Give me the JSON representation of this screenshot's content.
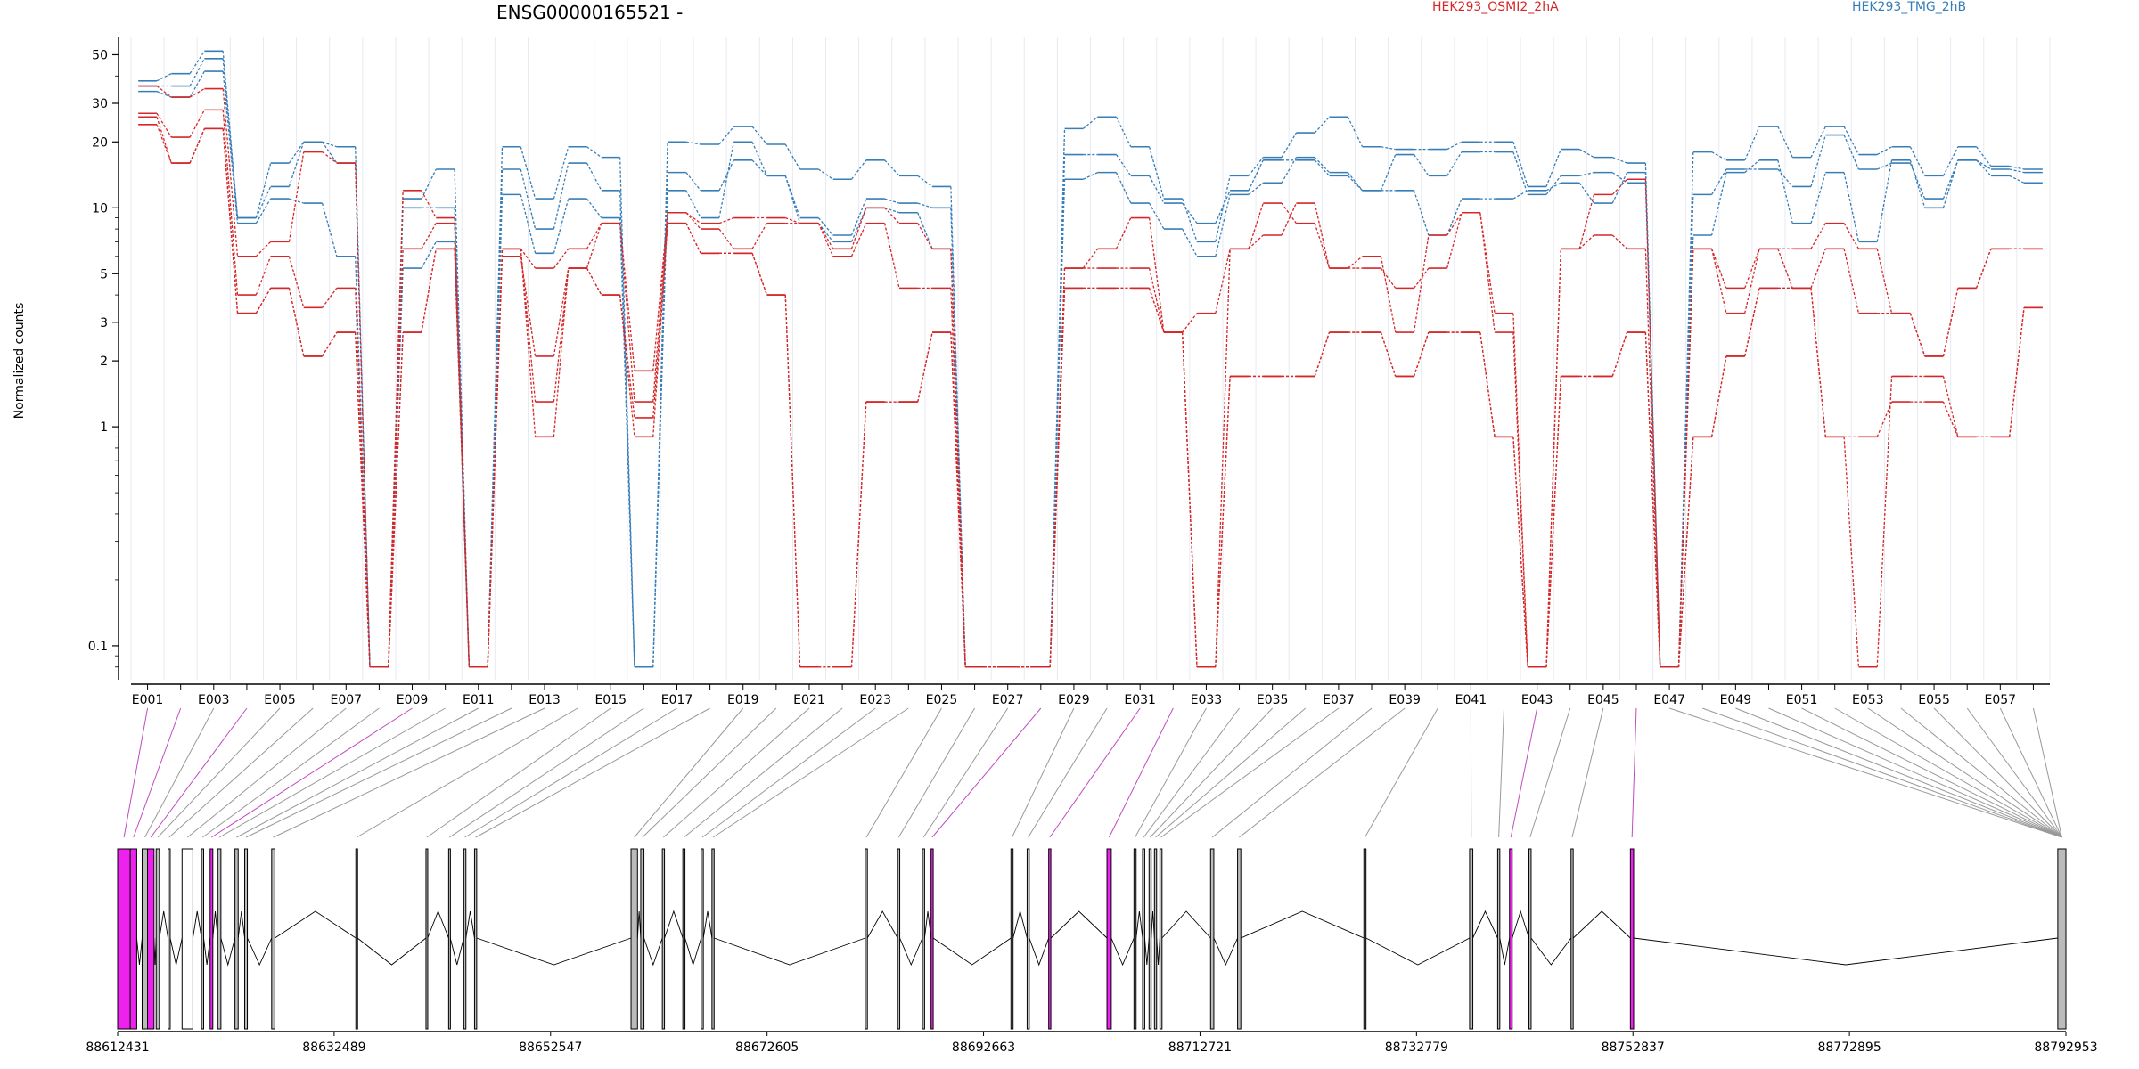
{
  "title": "ENSG00000165521 -",
  "legend": {
    "a": {
      "name": "HEK293_OSMI2_2hA",
      "color": "#d62728"
    },
    "b": {
      "name": "HEK293_TMG_2hB",
      "color": "#377eb8"
    }
  },
  "chart_data": {
    "type": "line",
    "title": "ENSG00000165521 -",
    "ylabel": "Normalized counts",
    "yscale": "log",
    "ylim": [
      0.07,
      60
    ],
    "yticks": [
      0.1,
      1,
      2,
      3,
      5,
      10,
      20,
      30,
      50
    ],
    "xtick_labels": [
      "E001",
      "E003",
      "E005",
      "E007",
      "E009",
      "E011",
      "E013",
      "E015",
      "E017",
      "E019",
      "E021",
      "E023",
      "E025",
      "E027",
      "E029",
      "E031",
      "E033",
      "E035",
      "E037",
      "E039",
      "E041",
      "E043",
      "E045",
      "E047",
      "E049",
      "E051",
      "E053",
      "E055",
      "E057"
    ],
    "categories": [
      "E001",
      "E002",
      "E003",
      "E004",
      "E005",
      "E006",
      "E007",
      "E008",
      "E009",
      "E010",
      "E011",
      "E012",
      "E013",
      "E014",
      "E015",
      "E016",
      "E017",
      "E018",
      "E019",
      "E020",
      "E021",
      "E022",
      "E023",
      "E024",
      "E025",
      "E026",
      "E027",
      "E028",
      "E029",
      "E030",
      "E031",
      "E032",
      "E033",
      "E034",
      "E035",
      "E036",
      "E037",
      "E038",
      "E039",
      "E040",
      "E041",
      "E042",
      "E043",
      "E044",
      "E045",
      "E046",
      "E047",
      "E048",
      "E049",
      "E050",
      "E051",
      "E052",
      "E053",
      "E054",
      "E055",
      "E056",
      "E057",
      "E058"
    ],
    "series": [
      {
        "group": "HEK293_TMG_2hB",
        "color": "#377eb8",
        "values": [
          38,
          41,
          52,
          9,
          16,
          20,
          19,
          0.08,
          11,
          15,
          0.08,
          19,
          11,
          19,
          17,
          0.08,
          20,
          19.5,
          23.5,
          19.5,
          15,
          13.5,
          16.5,
          14,
          12.5,
          0.08,
          0.08,
          0.08,
          23,
          26,
          19,
          11,
          7,
          14,
          17,
          22,
          26,
          19,
          18.5,
          18.5,
          20,
          20,
          12.5,
          18.5,
          17,
          16,
          0.08,
          18,
          16.5,
          23.5,
          17,
          23.5,
          17.5,
          19,
          14,
          19,
          15.5,
          15
        ]
      },
      {
        "group": "HEK293_TMG_2hB",
        "color": "#377eb8",
        "values": [
          36,
          36,
          48,
          9,
          12.5,
          20,
          16,
          0.08,
          10,
          10,
          0.08,
          15,
          8,
          16,
          12,
          0.08,
          14.5,
          12,
          16.5,
          14,
          9,
          7.5,
          11,
          10.5,
          10,
          0.08,
          0.08,
          0.08,
          17.5,
          17.5,
          14,
          10.5,
          8.5,
          12,
          16.5,
          16.5,
          14,
          12,
          17.5,
          14,
          18,
          18,
          11.5,
          14,
          14.5,
          13,
          0.08,
          11.5,
          15,
          15,
          12.5,
          21.5,
          15,
          16,
          11,
          16.5,
          15,
          14.5
        ]
      },
      {
        "group": "HEK293_TMG_2hB",
        "color": "#377eb8",
        "values": [
          34,
          32,
          42,
          8.5,
          11,
          10.5,
          6,
          0.08,
          5.3,
          7,
          0.08,
          11.5,
          6.2,
          11,
          9,
          0.08,
          12,
          9,
          20,
          14,
          8.5,
          7,
          10,
          9.5,
          6.5,
          0.08,
          0.08,
          0.08,
          13.5,
          14.5,
          10.5,
          8,
          6,
          11.5,
          13,
          17,
          14.5,
          12,
          12,
          7.5,
          11,
          11,
          12,
          13,
          10.5,
          14.5,
          0.08,
          7.5,
          14.5,
          16.5,
          8.5,
          14.5,
          7,
          16.5,
          10,
          16.5,
          14,
          13
        ]
      },
      {
        "group": "HEK293_OSMI2_2hA",
        "color": "#d62728",
        "values": [
          36,
          32,
          35,
          6,
          7,
          18,
          16,
          0.08,
          12,
          9,
          0.08,
          6.5,
          5.3,
          6.5,
          8.5,
          1.8,
          9.5,
          8.5,
          9,
          9,
          8.5,
          6.5,
          10,
          8.5,
          6.5,
          0.08,
          0.08,
          0.08,
          5.3,
          6.5,
          9,
          2.7,
          0.08,
          6.5,
          10.5,
          8.5,
          5.3,
          5.3,
          4.3,
          5.3,
          9.5,
          2.7,
          0.08,
          6.5,
          11.5,
          13.5,
          0.08,
          6.5,
          4.3,
          6.5,
          6.5,
          8.5,
          6.5,
          3.3,
          2.1,
          4.3,
          6.5,
          6.5
        ]
      },
      {
        "group": "HEK293_OSMI2_2hA",
        "color": "#d62728",
        "values": [
          27,
          21,
          28,
          4,
          6,
          3.5,
          4.3,
          0.08,
          6.5,
          8.5,
          0.08,
          6,
          2.1,
          5.3,
          8.5,
          1.3,
          9.5,
          8,
          6.5,
          8.5,
          8.5,
          6,
          8.5,
          4.3,
          4.3,
          0.08,
          0.08,
          0.08,
          5.3,
          5.3,
          5.3,
          2.7,
          3.3,
          6.5,
          7.5,
          10.5,
          5.3,
          6,
          2.7,
          7.5,
          9.5,
          3.3,
          0.08,
          6.5,
          7.5,
          6.5,
          0.08,
          6.5,
          3.3,
          6.5,
          4.3,
          6.5,
          3.3,
          3.3,
          2.1,
          4.3,
          6.5,
          6.5
        ]
      },
      {
        "group": "HEK293_OSMI2_2hA",
        "color": "#d62728",
        "values": [
          24,
          16,
          23,
          3.3,
          4.3,
          2.1,
          2.7,
          0.08,
          2.7,
          6.5,
          0.08,
          6.5,
          1.3,
          5.3,
          4,
          1.1,
          8.5,
          6.2,
          6.2,
          4,
          0.08,
          0.08,
          1.3,
          1.3,
          2.7,
          0.08,
          0.08,
          0.08,
          4.3,
          4.3,
          4.3,
          2.7,
          0.08,
          1.7,
          1.7,
          1.7,
          2.7,
          2.7,
          1.7,
          2.7,
          2.7,
          0.9,
          0.08,
          1.7,
          1.7,
          2.7,
          0.08,
          0.9,
          2.1,
          4.3,
          4.3,
          0.9,
          0.08,
          1.7,
          1.7,
          0.9,
          0.9,
          3.5
        ]
      },
      {
        "group": "HEK293_OSMI2_2hA",
        "color": "#d62728",
        "values": [
          26,
          16,
          23,
          3.3,
          4.3,
          2.1,
          2.7,
          0.08,
          2.7,
          6.5,
          0.08,
          6.5,
          0.9,
          5.3,
          4,
          0.9,
          8.5,
          6.2,
          6.2,
          4,
          0.08,
          0.08,
          1.3,
          1.3,
          2.7,
          0.08,
          0.08,
          0.08,
          4.3,
          4.3,
          4.3,
          2.7,
          0.08,
          1.7,
          1.7,
          1.7,
          2.7,
          2.7,
          1.7,
          2.7,
          2.7,
          0.9,
          0.08,
          1.7,
          1.7,
          2.7,
          0.08,
          0.9,
          2.1,
          4.3,
          4.3,
          0.9,
          0.9,
          1.3,
          1.3,
          0.9,
          0.9,
          3.5
        ]
      }
    ],
    "genome_axis": {
      "tick_labels": [
        "88612431",
        "88632489",
        "88652547",
        "88672605",
        "88692663",
        "88712721",
        "88732779",
        "88752837",
        "88772895",
        "88792953"
      ],
      "range": [
        88612431,
        88792953
      ]
    },
    "exon_segments": [
      {
        "x0": 88612431,
        "x1": 88613600,
        "color": "#ee22ee"
      },
      {
        "x0": 88613600,
        "x1": 88614200,
        "color": "#ee22ee"
      },
      {
        "x0": 88614700,
        "x1": 88615200,
        "color": "#bbbbbb"
      },
      {
        "x0": 88615200,
        "x1": 88615800,
        "color": "#ee22ee"
      },
      {
        "x0": 88616000,
        "x1": 88616300,
        "color": "#bbbbbb"
      },
      {
        "x0": 88617100,
        "x1": 88617300,
        "color": "#bbbbbb"
      },
      {
        "x0": 88618400,
        "x1": 88619400,
        "color": "#ffffff"
      },
      {
        "x0": 88620200,
        "x1": 88620400,
        "color": "#bbbbbb"
      },
      {
        "x0": 88621000,
        "x1": 88621250,
        "color": "#ee22ee"
      },
      {
        "x0": 88621700,
        "x1": 88622000,
        "color": "#bbbbbb"
      },
      {
        "x0": 88623300,
        "x1": 88623600,
        "color": "#bbbbbb"
      },
      {
        "x0": 88624200,
        "x1": 88624450,
        "color": "#bbbbbb"
      },
      {
        "x0": 88626700,
        "x1": 88627000,
        "color": "#bbbbbb"
      },
      {
        "x0": 88634500,
        "x1": 88634650,
        "color": "#bbbbbb"
      },
      {
        "x0": 88641000,
        "x1": 88641150,
        "color": "#bbbbbb"
      },
      {
        "x0": 88643100,
        "x1": 88643250,
        "color": "#bbbbbb"
      },
      {
        "x0": 88644500,
        "x1": 88644700,
        "color": "#bbbbbb"
      },
      {
        "x0": 88645500,
        "x1": 88645700,
        "color": "#bbbbbb"
      },
      {
        "x0": 88660000,
        "x1": 88660600,
        "color": "#bbbbbb"
      },
      {
        "x0": 88660900,
        "x1": 88661200,
        "color": "#bbbbbb"
      },
      {
        "x0": 88662900,
        "x1": 88663100,
        "color": "#bbbbbb"
      },
      {
        "x0": 88664800,
        "x1": 88665000,
        "color": "#bbbbbb"
      },
      {
        "x0": 88666500,
        "x1": 88666700,
        "color": "#bbbbbb"
      },
      {
        "x0": 88667500,
        "x1": 88667700,
        "color": "#bbbbbb"
      },
      {
        "x0": 88681700,
        "x1": 88681900,
        "color": "#bbbbbb"
      },
      {
        "x0": 88684700,
        "x1": 88684900,
        "color": "#bbbbbb"
      },
      {
        "x0": 88687000,
        "x1": 88687200,
        "color": "#bbbbbb"
      },
      {
        "x0": 88687800,
        "x1": 88688000,
        "color": "#ee22ee"
      },
      {
        "x0": 88695200,
        "x1": 88695400,
        "color": "#bbbbbb"
      },
      {
        "x0": 88696700,
        "x1": 88696900,
        "color": "#bbbbbb"
      },
      {
        "x0": 88698700,
        "x1": 88698900,
        "color": "#ee22ee"
      },
      {
        "x0": 88704100,
        "x1": 88704500,
        "color": "#ee22ee"
      },
      {
        "x0": 88706600,
        "x1": 88706800,
        "color": "#bbbbbb"
      },
      {
        "x0": 88707400,
        "x1": 88707600,
        "color": "#bbbbbb"
      },
      {
        "x0": 88708000,
        "x1": 88708200,
        "color": "#bbbbbb"
      },
      {
        "x0": 88708500,
        "x1": 88708700,
        "color": "#bbbbbb"
      },
      {
        "x0": 88709000,
        "x1": 88709200,
        "color": "#bbbbbb"
      },
      {
        "x0": 88713700,
        "x1": 88714000,
        "color": "#bbbbbb"
      },
      {
        "x0": 88716200,
        "x1": 88716500,
        "color": "#bbbbbb"
      },
      {
        "x0": 88727900,
        "x1": 88728100,
        "color": "#bbbbbb"
      },
      {
        "x0": 88737700,
        "x1": 88738000,
        "color": "#bbbbbb"
      },
      {
        "x0": 88740300,
        "x1": 88740500,
        "color": "#bbbbbb"
      },
      {
        "x0": 88741400,
        "x1": 88741650,
        "color": "#ee22ee"
      },
      {
        "x0": 88743200,
        "x1": 88743400,
        "color": "#bbbbbb"
      },
      {
        "x0": 88747100,
        "x1": 88747300,
        "color": "#bbbbbb"
      },
      {
        "x0": 88752600,
        "x1": 88752900,
        "color": "#ee22ee"
      },
      {
        "x0": 88792200,
        "x1": 88792953,
        "color": "#bbbbbb"
      }
    ]
  }
}
